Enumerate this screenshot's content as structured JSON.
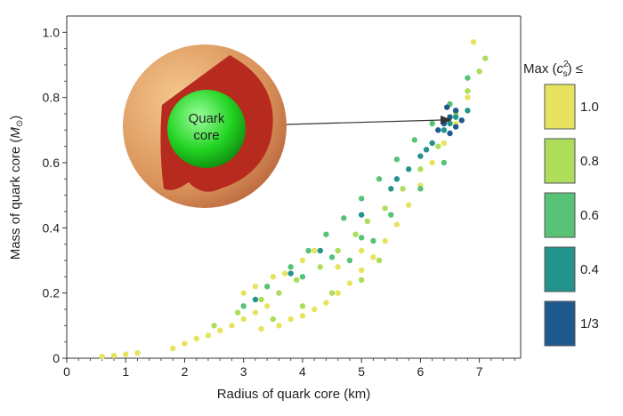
{
  "chart_data": {
    "type": "scatter",
    "xlabel": "Radius of quark core (km)",
    "ylabel_main": "Mass of quark core (",
    "ylabel_unit": "M",
    "ylabel_unit_sub": "⊙",
    "ylabel_close": ")",
    "xlim": [
      0,
      7.7
    ],
    "ylim": [
      0,
      1.05
    ],
    "xticks": [
      0,
      1,
      2,
      3,
      4,
      5,
      6,
      7
    ],
    "yticks": [
      0,
      0.2,
      0.4,
      0.6,
      0.8,
      1.0
    ],
    "ytick_labels": [
      "0",
      "0.2",
      "0.4",
      "0.6",
      "0.8",
      "1.0"
    ],
    "grid": false,
    "legend": {
      "position": "right",
      "title_main": "Max (",
      "title_var": "c",
      "title_sup": "2",
      "title_sub": "s",
      "title_close": ") ≤",
      "entries": [
        {
          "label": "1.0",
          "color": "#e8e35f"
        },
        {
          "label": "0.8",
          "color": "#addd5a"
        },
        {
          "label": "0.6",
          "color": "#58c277"
        },
        {
          "label": "0.4",
          "color": "#22948c"
        },
        {
          "label": "1/3",
          "color": "#1f5a8f"
        }
      ]
    },
    "series": [
      {
        "color": "#e8e35f",
        "points": [
          [
            0.6,
            0.005
          ],
          [
            0.8,
            0.008
          ],
          [
            1.0,
            0.012
          ],
          [
            1.2,
            0.016
          ],
          [
            1.8,
            0.03
          ],
          [
            2.0,
            0.045
          ],
          [
            2.2,
            0.06
          ],
          [
            2.4,
            0.07
          ],
          [
            2.6,
            0.085
          ],
          [
            2.8,
            0.1
          ],
          [
            3.0,
            0.12
          ],
          [
            3.2,
            0.14
          ],
          [
            3.4,
            0.16
          ],
          [
            3.3,
            0.09
          ],
          [
            3.6,
            0.1
          ],
          [
            3.8,
            0.12
          ],
          [
            4.0,
            0.13
          ],
          [
            4.2,
            0.15
          ],
          [
            4.4,
            0.17
          ],
          [
            4.6,
            0.2
          ],
          [
            4.8,
            0.23
          ],
          [
            5.0,
            0.27
          ],
          [
            5.2,
            0.31
          ],
          [
            5.4,
            0.36
          ],
          [
            5.6,
            0.41
          ],
          [
            5.8,
            0.47
          ],
          [
            6.0,
            0.53
          ],
          [
            6.2,
            0.6
          ],
          [
            6.4,
            0.66
          ],
          [
            6.6,
            0.72
          ],
          [
            6.8,
            0.8
          ],
          [
            6.9,
            0.97
          ],
          [
            3.0,
            0.2
          ],
          [
            3.5,
            0.25
          ],
          [
            4.0,
            0.3
          ],
          [
            3.2,
            0.22
          ],
          [
            3.7,
            0.26
          ],
          [
            4.2,
            0.33
          ],
          [
            4.6,
            0.28
          ],
          [
            5.0,
            0.33
          ]
        ]
      },
      {
        "color": "#addd5a",
        "points": [
          [
            2.5,
            0.1
          ],
          [
            2.9,
            0.14
          ],
          [
            3.3,
            0.18
          ],
          [
            3.6,
            0.2
          ],
          [
            3.9,
            0.24
          ],
          [
            4.3,
            0.28
          ],
          [
            4.6,
            0.33
          ],
          [
            4.9,
            0.38
          ],
          [
            5.1,
            0.42
          ],
          [
            5.4,
            0.46
          ],
          [
            5.7,
            0.52
          ],
          [
            6.0,
            0.58
          ],
          [
            6.3,
            0.65
          ],
          [
            6.6,
            0.75
          ],
          [
            6.8,
            0.82
          ],
          [
            7.0,
            0.88
          ],
          [
            7.1,
            0.92
          ],
          [
            3.5,
            0.12
          ],
          [
            4.0,
            0.16
          ],
          [
            4.5,
            0.2
          ],
          [
            5.0,
            0.24
          ],
          [
            5.3,
            0.3
          ]
        ]
      },
      {
        "color": "#58c277",
        "points": [
          [
            3.0,
            0.16
          ],
          [
            3.4,
            0.22
          ],
          [
            3.8,
            0.28
          ],
          [
            4.1,
            0.33
          ],
          [
            4.4,
            0.38
          ],
          [
            4.7,
            0.43
          ],
          [
            5.0,
            0.49
          ],
          [
            5.3,
            0.55
          ],
          [
            5.6,
            0.61
          ],
          [
            5.9,
            0.67
          ],
          [
            6.2,
            0.72
          ],
          [
            6.5,
            0.78
          ],
          [
            6.8,
            0.86
          ],
          [
            4.0,
            0.25
          ],
          [
            4.5,
            0.31
          ],
          [
            5.0,
            0.37
          ],
          [
            5.5,
            0.44
          ],
          [
            6.0,
            0.52
          ],
          [
            6.4,
            0.6
          ],
          [
            4.8,
            0.3
          ],
          [
            5.2,
            0.36
          ]
        ]
      },
      {
        "color": "#22948c",
        "points": [
          [
            3.2,
            0.18
          ],
          [
            3.8,
            0.26
          ],
          [
            4.3,
            0.33
          ],
          [
            5.0,
            0.44
          ],
          [
            5.5,
            0.52
          ],
          [
            5.8,
            0.58
          ],
          [
            6.0,
            0.62
          ],
          [
            6.2,
            0.66
          ],
          [
            6.4,
            0.7
          ],
          [
            6.6,
            0.74
          ],
          [
            6.8,
            0.76
          ],
          [
            5.6,
            0.55
          ],
          [
            6.1,
            0.64
          ],
          [
            6.5,
            0.72
          ]
        ]
      },
      {
        "color": "#1f5a8f",
        "points": [
          [
            6.3,
            0.7
          ],
          [
            6.4,
            0.72
          ],
          [
            6.5,
            0.74
          ],
          [
            6.6,
            0.76
          ],
          [
            6.7,
            0.73
          ],
          [
            6.5,
            0.69
          ],
          [
            6.6,
            0.71
          ],
          [
            6.45,
            0.77
          ]
        ]
      }
    ],
    "inset_label": [
      "Quark",
      "core"
    ]
  }
}
